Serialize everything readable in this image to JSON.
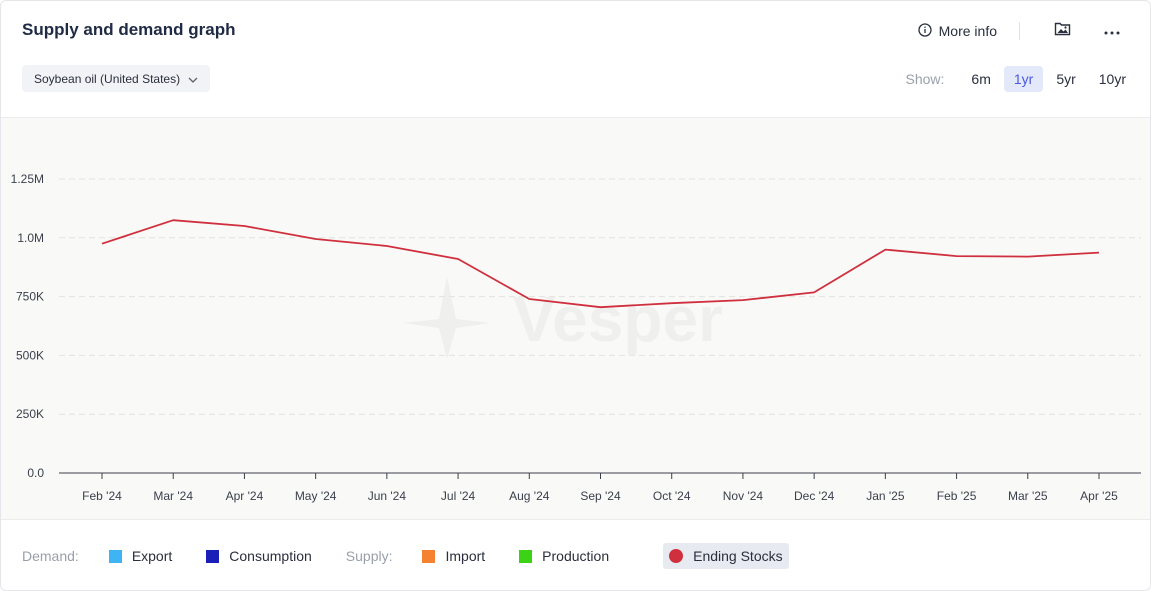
{
  "header": {
    "title": "Supply and demand graph",
    "more_info_label": "More info"
  },
  "selector": {
    "value": "Soybean oil (United States)"
  },
  "range": {
    "label": "Show:",
    "options": [
      "6m",
      "1yr",
      "5yr",
      "10yr"
    ],
    "selected": "1yr"
  },
  "watermark": "Vesper",
  "legend": {
    "demand_label": "Demand:",
    "supply_label": "Supply:",
    "export": "Export",
    "consumption": "Consumption",
    "import": "Import",
    "production": "Production",
    "ending_stocks": "Ending Stocks"
  },
  "colors": {
    "export": "#3fb4f5",
    "consumption": "#1a1fb8",
    "import": "#f58231",
    "production": "#3cd316",
    "ending_stocks": "#d0303e"
  },
  "icons": {
    "more_info": "info-circle-icon",
    "image": "image-icon",
    "menu": "more-horizontal-icon",
    "dropdown": "chevron-down-icon"
  },
  "chart_data": {
    "type": "line",
    "categories": [
      "Feb '24",
      "Mar '24",
      "Apr '24",
      "May '24",
      "Jun '24",
      "Jul '24",
      "Aug '24",
      "Sep '24",
      "Oct '24",
      "Nov '24",
      "Dec '24",
      "Jan '25",
      "Feb '25",
      "Mar '25",
      "Apr '25"
    ],
    "series": [
      {
        "name": "Ending Stocks",
        "values": [
          975000,
          1075000,
          1050000,
          995000,
          965000,
          910000,
          740000,
          705000,
          722000,
          735000,
          768000,
          950000,
          922000,
          920000,
          937000
        ]
      }
    ],
    "yticks": [
      0,
      250000,
      500000,
      750000,
      1000000,
      1250000
    ],
    "ytick_labels": [
      "0.0",
      "250K",
      "500K",
      "750K",
      "1.0M",
      "1.25M"
    ],
    "ylim": [
      0,
      1250000
    ],
    "grid": true,
    "legend_position": "bottom"
  }
}
